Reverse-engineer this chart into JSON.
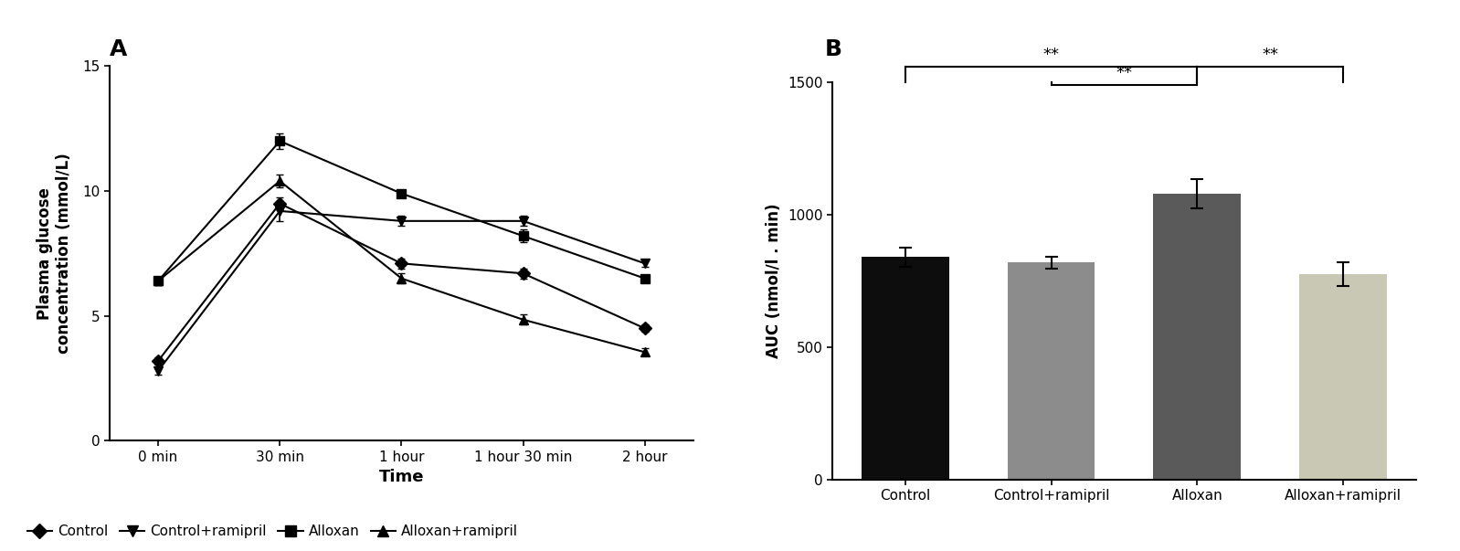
{
  "panel_A": {
    "title": "A",
    "xlabel": "Time",
    "ylabel": "Plasma glucose\nconcentration (mmol/L)",
    "xlabels": [
      "0 min",
      "30 min",
      "1 hour",
      "1 hour 30 min",
      "2 hour"
    ],
    "ylim": [
      0,
      15
    ],
    "yticks": [
      0,
      5,
      10,
      15
    ],
    "series": {
      "Control": {
        "y": [
          3.2,
          9.5,
          7.1,
          6.7,
          4.5
        ],
        "yerr": [
          0.15,
          0.25,
          0.2,
          0.2,
          0.15
        ],
        "marker": "D",
        "markersize": 7
      },
      "Control+ramipril": {
        "y": [
          2.8,
          9.2,
          8.8,
          8.8,
          7.1
        ],
        "yerr": [
          0.15,
          0.4,
          0.2,
          0.2,
          0.12
        ],
        "marker": "v",
        "markersize": 7
      },
      "Alloxan": {
        "y": [
          6.4,
          12.0,
          9.9,
          8.2,
          6.5
        ],
        "yerr": [
          0.15,
          0.3,
          0.15,
          0.25,
          0.15
        ],
        "marker": "s",
        "markersize": 7
      },
      "Alloxan+ramipril": {
        "y": [
          6.4,
          10.4,
          6.5,
          4.85,
          3.55
        ],
        "yerr": [
          0.15,
          0.25,
          0.2,
          0.2,
          0.15
        ],
        "marker": "^",
        "markersize": 7
      }
    }
  },
  "panel_B": {
    "title": "B",
    "ylabel": "AUC (nmol/l . min)",
    "categories": [
      "Control",
      "Control+ramipril",
      "Alloxan",
      "Alloxan+ramipril"
    ],
    "values": [
      840,
      820,
      1080,
      775
    ],
    "errors": [
      35,
      22,
      55,
      45
    ],
    "colors": [
      "#0d0d0d",
      "#8c8c8c",
      "#5a5a5a",
      "#c8c8b4"
    ],
    "ylim": [
      0,
      1500
    ],
    "yticks": [
      0,
      500,
      1000,
      1500
    ]
  }
}
